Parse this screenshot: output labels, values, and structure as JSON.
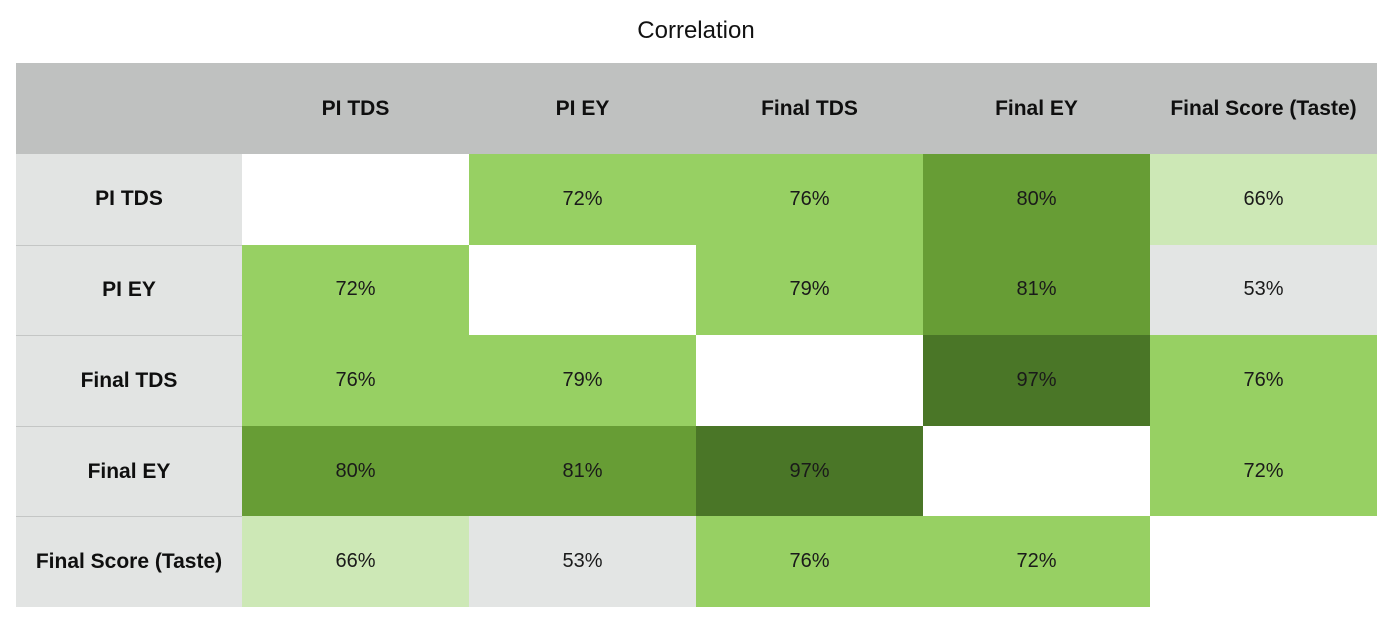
{
  "chart_data": {
    "type": "heatmap",
    "title": "Correlation",
    "columns": [
      "PI TDS",
      "PI EY",
      "Final TDS",
      "Final EY",
      "Final Score (Taste)"
    ],
    "rows": [
      "PI TDS",
      "PI EY",
      "Final TDS",
      "Final EY",
      "Final Score (Taste)"
    ],
    "values": [
      [
        null,
        72,
        76,
        80,
        66
      ],
      [
        72,
        null,
        79,
        81,
        53
      ],
      [
        76,
        79,
        null,
        97,
        76
      ],
      [
        80,
        81,
        97,
        null,
        72
      ],
      [
        66,
        53,
        76,
        72,
        null
      ]
    ],
    "unit": "%",
    "colors": {
      "header_background": "#bfc1c0",
      "row_header_background": "#e2e4e3",
      "diagonal": "#ffffff",
      "scale": [
        {
          "min": 0,
          "max": 60,
          "color": "#e3e5e4"
        },
        {
          "min": 60,
          "max": 70,
          "color": "#cde8b6"
        },
        {
          "min": 70,
          "max": 80,
          "color": "#97d063"
        },
        {
          "min": 80,
          "max": 90,
          "color": "#679d35"
        },
        {
          "min": 90,
          "max": 100,
          "color": "#4a7627"
        }
      ]
    }
  }
}
